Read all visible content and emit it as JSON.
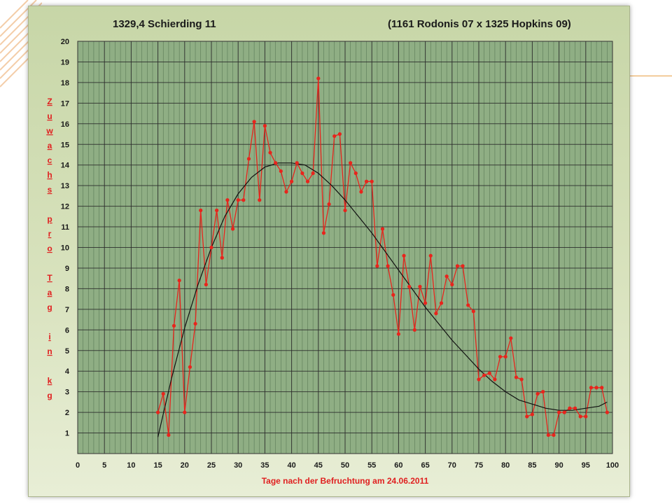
{
  "colors": {
    "plot_background": "#8fae84",
    "grid_minor": "#2f4f2f",
    "grid_major": "#2a2a2a",
    "series_line": "#e8241c",
    "series_marker": "#e8241c",
    "trend_line": "#111111",
    "label_red": "#e02020",
    "decoration_orange": "#e8a046"
  },
  "chart_data": {
    "type": "line",
    "title": "1329,4 Schierding 11",
    "subtitle": "(1161 Rodonis 07 x 1325 Hopkins 09)",
    "xlabel": "Tage nach der Befruchtung am 24.06.2011",
    "ylabel": "Zuwachs pro Tag in kg",
    "ylabel_words": [
      "Zuwachs",
      "pro",
      "Tag",
      "in",
      "kg"
    ],
    "xlim": [
      0,
      100
    ],
    "ylim": [
      0,
      20
    ],
    "x_ticks": [
      0,
      5,
      10,
      15,
      20,
      25,
      30,
      35,
      40,
      45,
      50,
      55,
      60,
      65,
      70,
      75,
      80,
      85,
      90,
      95,
      100
    ],
    "y_ticks": [
      1,
      2,
      3,
      4,
      5,
      6,
      7,
      8,
      9,
      10,
      11,
      12,
      13,
      14,
      15,
      16,
      17,
      18,
      19,
      20
    ],
    "grid": true,
    "legend": "none",
    "series": [
      {
        "type": "line",
        "markers": true,
        "x": [
          15,
          16,
          17,
          18,
          19,
          20,
          21,
          22,
          23,
          24,
          25,
          26,
          27,
          28,
          29,
          30,
          31,
          32,
          33,
          34,
          35,
          36,
          37,
          38,
          39,
          40,
          41,
          42,
          43,
          44,
          45,
          46,
          47,
          48,
          49,
          50,
          51,
          52,
          53,
          54,
          55,
          56,
          57,
          58,
          59,
          60,
          61,
          62,
          63,
          64,
          65,
          66,
          67,
          68,
          69,
          70,
          71,
          72,
          73,
          74,
          75,
          76,
          77,
          78,
          79,
          80,
          81,
          82,
          83,
          84,
          85,
          86,
          87,
          88,
          89,
          90,
          91,
          92,
          93,
          94,
          95,
          96,
          97,
          98,
          99
        ],
        "y": [
          2.0,
          2.9,
          0.9,
          6.2,
          8.4,
          2.0,
          4.2,
          6.3,
          11.8,
          8.2,
          10.0,
          11.8,
          9.5,
          12.3,
          10.9,
          12.3,
          12.3,
          14.3,
          16.1,
          12.3,
          15.9,
          14.6,
          14.1,
          13.7,
          12.7,
          13.2,
          14.1,
          13.6,
          13.2,
          13.6,
          18.2,
          10.7,
          12.1,
          15.4,
          15.5,
          11.8,
          14.1,
          13.6,
          12.7,
          13.2,
          13.2,
          9.1,
          10.9,
          9.1,
          7.7,
          5.8,
          9.6,
          8.1,
          6.0,
          8.1,
          7.3,
          9.6,
          6.8,
          7.3,
          8.6,
          8.2,
          9.1,
          9.1,
          7.2,
          6.9,
          3.6,
          3.8,
          3.9,
          3.6,
          4.7,
          4.7,
          5.6,
          3.7,
          3.6,
          1.8,
          1.9,
          2.9,
          3.0,
          0.9,
          0.9,
          2.0,
          2.0,
          2.2,
          2.2,
          1.8,
          1.8,
          3.2,
          3.2,
          3.2,
          2.0
        ]
      },
      {
        "type": "trendline",
        "markers": false,
        "x": [
          15,
          17.5,
          20,
          22.5,
          25,
          27.5,
          30,
          32.5,
          35,
          37.5,
          40,
          42.5,
          45,
          47.5,
          50,
          52.5,
          55,
          57.5,
          60,
          62.5,
          65,
          67.5,
          70,
          72.5,
          75,
          77.5,
          80,
          82.5,
          85,
          87.5,
          90,
          92.5,
          95,
          97.5,
          99
        ],
        "y": [
          0.8,
          3.6,
          6.1,
          8.2,
          10.0,
          11.5,
          12.6,
          13.4,
          13.9,
          14.1,
          14.1,
          14.0,
          13.6,
          13.0,
          12.3,
          11.5,
          10.7,
          9.8,
          8.9,
          8.0,
          7.1,
          6.3,
          5.5,
          4.8,
          4.1,
          3.5,
          3.0,
          2.6,
          2.4,
          2.2,
          2.1,
          2.1,
          2.2,
          2.3,
          2.5
        ]
      }
    ]
  }
}
